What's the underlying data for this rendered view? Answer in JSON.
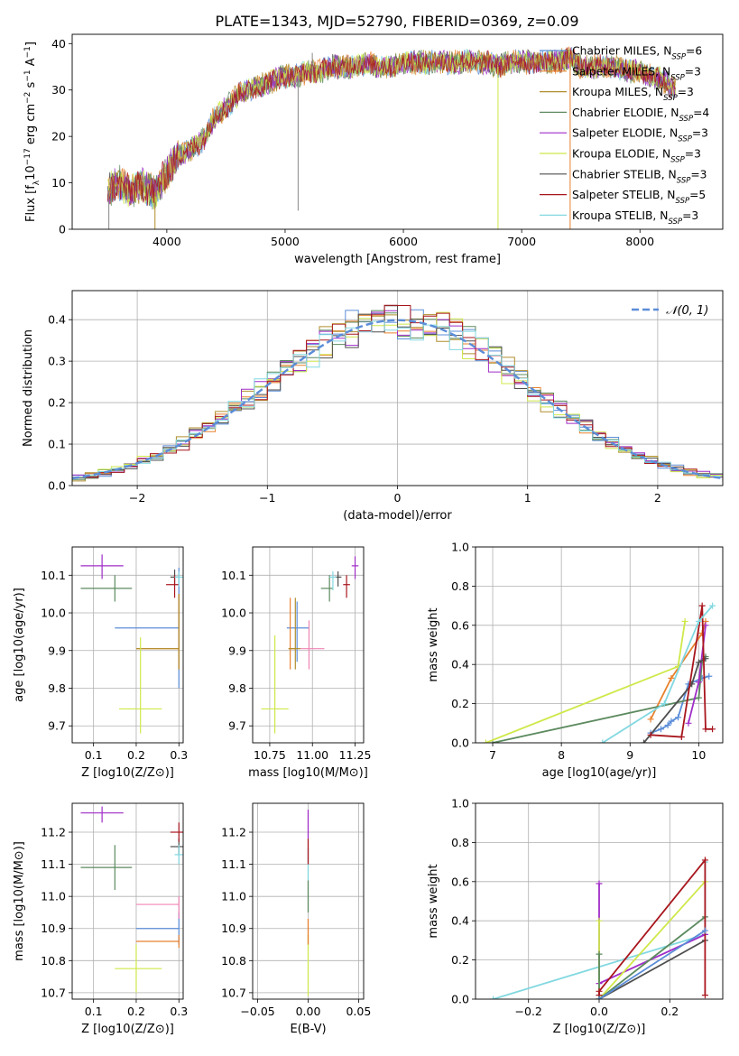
{
  "figure_title": "PLATE=1343, MJD=52790, FIBERID=0369, z=0.09",
  "series": [
    {
      "name": "Chabrier MILES",
      "nssp": "6",
      "color": "#5b8dd8"
    },
    {
      "name": "Salpeter MILES",
      "nssp": "3",
      "color": "#e8812e"
    },
    {
      "name": "Kroupa MILES",
      "nssp": "3",
      "color": "#b08d2d"
    },
    {
      "name": "Chabrier ELODIE",
      "nssp": "4",
      "color": "#5c8a5f"
    },
    {
      "name": "Salpeter ELODIE",
      "nssp": "3",
      "color": "#a02cc8"
    },
    {
      "name": "Kroupa ELODIE",
      "nssp": "3",
      "color": "#cfe84a"
    },
    {
      "name": "Chabrier STELIB",
      "nssp": "3",
      "color": "#4f4f4f"
    },
    {
      "name": "Salpeter STELIB",
      "nssp": "5",
      "color": "#a8161d"
    },
    {
      "name": "Kroupa STELIB",
      "nssp": "3",
      "color": "#82d8e0"
    }
  ],
  "nssp_label": "N",
  "nssp_sub": "SSP",
  "chart_data": [
    {
      "id": "spectrum",
      "type": "line",
      "xlabel": "wavelength [Angstrom, rest frame]",
      "ylabel": "Flux [f_λ 10^-17 erg cm^-2 s^-1 A^-1]",
      "xlim": [
        3200,
        8700
      ],
      "ylim": [
        0,
        42
      ],
      "xticks": [
        4000,
        5000,
        6000,
        7000,
        8000
      ],
      "yticks": [
        0,
        10,
        20,
        30,
        40
      ],
      "grid": false,
      "legend": "top-right",
      "flux_envelope": [
        [
          3500,
          8
        ],
        [
          3600,
          10
        ],
        [
          3700,
          8
        ],
        [
          3800,
          9.5
        ],
        [
          3900,
          8
        ],
        [
          4000,
          12
        ],
        [
          4100,
          16
        ],
        [
          4200,
          17
        ],
        [
          4300,
          19
        ],
        [
          4400,
          24
        ],
        [
          4500,
          26
        ],
        [
          4600,
          29
        ],
        [
          4700,
          30
        ],
        [
          4800,
          31
        ],
        [
          4900,
          32
        ],
        [
          5000,
          33
        ],
        [
          5100,
          33
        ],
        [
          5200,
          34
        ],
        [
          5300,
          34
        ],
        [
          5400,
          35
        ],
        [
          5500,
          35
        ],
        [
          5600,
          35
        ],
        [
          5700,
          36
        ],
        [
          5800,
          35
        ],
        [
          5900,
          35
        ],
        [
          6000,
          36
        ],
        [
          6100,
          36
        ],
        [
          6200,
          36
        ],
        [
          6300,
          36
        ],
        [
          6400,
          36
        ],
        [
          6500,
          36
        ],
        [
          6600,
          36
        ],
        [
          6700,
          36
        ],
        [
          6800,
          35
        ],
        [
          6900,
          36
        ],
        [
          7000,
          36
        ],
        [
          7100,
          36
        ],
        [
          7200,
          36
        ],
        [
          7300,
          36
        ],
        [
          7400,
          37
        ],
        [
          7500,
          35
        ],
        [
          7600,
          35
        ],
        [
          7700,
          35
        ],
        [
          7800,
          35
        ],
        [
          7900,
          34
        ],
        [
          8000,
          34
        ],
        [
          8100,
          33
        ],
        [
          8200,
          32
        ],
        [
          8300,
          30
        ]
      ],
      "spikes": [
        {
          "x": 5110,
          "y": 4
        },
        {
          "x": 5230,
          "y": 38
        },
        {
          "x": 3510,
          "y": 0
        },
        {
          "x": 3900,
          "y": 0
        },
        {
          "x": 6800,
          "y": 0
        },
        {
          "x": 7410,
          "y": 0
        }
      ]
    },
    {
      "id": "residual-hist",
      "type": "line",
      "xlabel": "(data-model)/error",
      "ylabel": "Normed distribution",
      "xlim": [
        -2.5,
        2.5
      ],
      "ylim": [
        0,
        0.47
      ],
      "xticks": [
        -2,
        -1,
        0,
        1,
        2
      ],
      "yticks": [
        0.0,
        0.1,
        0.2,
        0.3,
        0.4
      ],
      "grid": true,
      "legend": "top-right",
      "normal_label": "𝒩(0, 1)",
      "normal_color": "#5b8dd8"
    },
    {
      "id": "age-vs-Z",
      "type": "scatter",
      "xlabel": "Z [log10(Z/Z⊙)]",
      "ylabel": "age  [log10(age/yr)]",
      "xlim": [
        0.05,
        0.31
      ],
      "ylim": [
        9.655,
        10.175
      ],
      "xticks": [
        0.1,
        0.2,
        0.3
      ],
      "yticks": [
        9.7,
        9.8,
        9.9,
        10.0,
        10.1
      ],
      "grid": true,
      "points": [
        {
          "s": 0,
          "x": 0.3,
          "y": 9.96,
          "xerr": [
            0.15,
            0.3
          ],
          "yerr": [
            9.8,
            10.12
          ]
        },
        {
          "s": 1,
          "x": 0.3,
          "y": 9.905,
          "xerr": [
            0.2,
            0.3
          ],
          "yerr": [
            9.85,
            10.05
          ]
        },
        {
          "s": 2,
          "x": 0.3,
          "y": 9.905,
          "xerr": [
            0.2,
            0.3
          ],
          "yerr": [
            9.85,
            10.05
          ]
        },
        {
          "s": 3,
          "x": 0.15,
          "y": 10.065,
          "xerr": [
            0.07,
            0.19
          ],
          "yerr": [
            10.03,
            10.1
          ]
        },
        {
          "s": 4,
          "x": 0.12,
          "y": 10.125,
          "xerr": [
            0.07,
            0.17
          ],
          "yerr": [
            10.09,
            10.155
          ]
        },
        {
          "s": 5,
          "x": 0.21,
          "y": 9.745,
          "xerr": [
            0.16,
            0.26
          ],
          "yerr": [
            9.68,
            9.935
          ]
        },
        {
          "s": 6,
          "x": 0.29,
          "y": 10.095,
          "xerr": [
            0.28,
            0.3
          ],
          "yerr": [
            10.075,
            10.115
          ]
        },
        {
          "s": 7,
          "x": 0.29,
          "y": 10.075,
          "xerr": [
            0.27,
            0.3
          ],
          "yerr": [
            10.04,
            10.1
          ]
        },
        {
          "s": 8,
          "x": 0.3,
          "y": 10.095,
          "xerr": [
            0.29,
            0.31
          ],
          "yerr": [
            10.07,
            10.11
          ]
        }
      ]
    },
    {
      "id": "age-vs-mass",
      "type": "scatter",
      "xlabel": "mass [log10(M/M⊙)]",
      "ylabel": "",
      "xlim": [
        10.65,
        11.3
      ],
      "ylim": [
        9.655,
        10.175
      ],
      "xticks": [
        10.75,
        11.0,
        11.25
      ],
      "yticks": [
        9.7,
        9.8,
        9.9,
        10.0,
        10.1
      ],
      "grid": true,
      "points": [
        {
          "s": 0,
          "x": 10.91,
          "y": 9.96,
          "xerr": [
            10.85,
            10.98
          ],
          "yerr": [
            9.87,
            10.03
          ]
        },
        {
          "s": 1,
          "x": 10.87,
          "y": 9.905,
          "xerr": [
            10.86,
            10.9
          ],
          "yerr": [
            9.85,
            10.04
          ]
        },
        {
          "s": 2,
          "x": 10.9,
          "y": 9.905,
          "xerr": [
            10.86,
            10.93
          ],
          "yerr": [
            9.85,
            10.04
          ]
        },
        {
          "s": 3,
          "x": 11.1,
          "y": 10.065,
          "xerr": [
            11.05,
            11.12
          ],
          "yerr": [
            10.03,
            10.1
          ]
        },
        {
          "s": 4,
          "x": 11.25,
          "y": 10.125,
          "xerr": [
            11.23,
            11.27
          ],
          "yerr": [
            10.09,
            10.15
          ]
        },
        {
          "s": 5,
          "x": 10.78,
          "y": 9.745,
          "xerr": [
            10.7,
            10.86
          ],
          "yerr": [
            9.68,
            9.94
          ]
        },
        {
          "s": 6,
          "x": 11.15,
          "y": 10.095,
          "xerr": [
            11.13,
            11.17
          ],
          "yerr": [
            10.07,
            10.11
          ]
        },
        {
          "s": 7,
          "x": 11.2,
          "y": 10.075,
          "xerr": [
            11.18,
            11.22
          ],
          "yerr": [
            10.04,
            10.1
          ]
        },
        {
          "s": 8,
          "x": 11.12,
          "y": 10.095,
          "xerr": [
            11.1,
            11.14
          ],
          "yerr": [
            10.06,
            10.11
          ]
        },
        {
          "s": 9,
          "x": 10.98,
          "y": 9.905,
          "xerr": [
            10.93,
            11.07
          ],
          "yerr": [
            9.85,
            9.98
          ]
        }
      ],
      "extra_color": "#f084b4"
    },
    {
      "id": "mass-weight-vs-age",
      "type": "line",
      "xlabel": "age  [log10(age/yr)]",
      "ylabel": "mass weight",
      "xlim": [
        6.75,
        10.35
      ],
      "ylim": [
        0,
        1.0
      ],
      "xticks": [
        7,
        8,
        9,
        10
      ],
      "yticks": [
        0.0,
        0.2,
        0.4,
        0.6,
        0.8,
        1.0
      ],
      "grid": true,
      "series_points": [
        {
          "s": 0,
          "pts": [
            [
              9.3,
              0.05
            ],
            [
              9.45,
              0.07
            ],
            [
              9.55,
              0.09
            ],
            [
              9.6,
              0.11
            ],
            [
              9.7,
              0.13
            ],
            [
              9.85,
              0.3
            ],
            [
              10.05,
              0.33
            ],
            [
              10.15,
              0.34
            ]
          ]
        },
        {
          "s": 1,
          "pts": [
            [
              9.3,
              0.12
            ],
            [
              9.6,
              0.33
            ],
            [
              10.05,
              0.56
            ],
            [
              10.1,
              0.62
            ]
          ]
        },
        {
          "s": 3,
          "pts": [
            [
              7.0,
              0.0
            ],
            [
              10.0,
              0.23
            ],
            [
              10.05,
              0.42
            ],
            [
              10.1,
              0.44
            ]
          ]
        },
        {
          "s": 4,
          "pts": [
            [
              9.85,
              0.1
            ],
            [
              10.0,
              0.31
            ],
            [
              10.1,
              0.6
            ]
          ]
        },
        {
          "s": 5,
          "pts": [
            [
              6.9,
              0.0
            ],
            [
              9.7,
              0.39
            ],
            [
              9.8,
              0.62
            ]
          ]
        },
        {
          "s": 6,
          "pts": [
            [
              9.2,
              0.0
            ],
            [
              9.9,
              0.3
            ],
            [
              10.0,
              0.41
            ],
            [
              10.1,
              0.43
            ]
          ]
        },
        {
          "s": 7,
          "pts": [
            [
              9.3,
              0.04
            ],
            [
              9.75,
              0.03
            ],
            [
              10.05,
              0.7
            ],
            [
              10.1,
              0.07
            ],
            [
              10.2,
              0.07
            ]
          ]
        },
        {
          "s": 8,
          "pts": [
            [
              8.6,
              0.0
            ],
            [
              9.5,
              0.2
            ],
            [
              10.0,
              0.62
            ],
            [
              10.2,
              0.7
            ]
          ]
        }
      ]
    },
    {
      "id": "mass-vs-Z",
      "type": "scatter",
      "xlabel": "Z [log10(Z/Z⊙)]",
      "ylabel": "mass [log10(M/M⊙)]",
      "xlim": [
        0.05,
        0.31
      ],
      "ylim": [
        10.68,
        11.29
      ],
      "xticks": [
        0.1,
        0.2,
        0.3
      ],
      "yticks": [
        10.7,
        10.8,
        10.9,
        11.0,
        11.1,
        11.2
      ],
      "grid": true,
      "points": [
        {
          "s": 0,
          "x": 0.3,
          "y": 10.9,
          "xerr": [
            0.2,
            0.3
          ],
          "yerr": [
            10.85,
            10.95
          ]
        },
        {
          "s": 1,
          "x": 0.3,
          "y": 10.86,
          "xerr": [
            0.2,
            0.3
          ],
          "yerr": [
            10.84,
            10.88
          ]
        },
        {
          "s": 3,
          "x": 0.15,
          "y": 11.09,
          "xerr": [
            0.07,
            0.19
          ],
          "yerr": [
            11.02,
            11.16
          ]
        },
        {
          "s": 4,
          "x": 0.12,
          "y": 11.26,
          "xerr": [
            0.07,
            0.17
          ],
          "yerr": [
            11.23,
            11.28
          ]
        },
        {
          "s": 5,
          "x": 0.2,
          "y": 10.775,
          "xerr": [
            0.15,
            0.26
          ],
          "yerr": [
            10.7,
            10.85
          ]
        },
        {
          "s": 6,
          "x": 0.3,
          "y": 11.155,
          "xerr": [
            0.28,
            0.31
          ],
          "yerr": [
            11.13,
            11.18
          ]
        },
        {
          "s": 7,
          "x": 0.3,
          "y": 11.2,
          "xerr": [
            0.28,
            0.31
          ],
          "yerr": [
            11.17,
            11.23
          ]
        },
        {
          "s": 8,
          "x": 0.3,
          "y": 11.13,
          "xerr": [
            0.29,
            0.31
          ],
          "yerr": [
            11.1,
            11.16
          ]
        },
        {
          "s": 9,
          "x": 0.3,
          "y": 10.975,
          "xerr": [
            0.2,
            0.3
          ],
          "yerr": [
            10.93,
            11.0
          ]
        }
      ],
      "extra_color": "#f084b4"
    },
    {
      "id": "mass-vs-ebv",
      "type": "scatter",
      "xlabel": "E(B-V)",
      "ylabel": "",
      "xlim": [
        -0.055,
        0.055
      ],
      "ylim": [
        10.68,
        11.29
      ],
      "xticks": [
        -0.05,
        0.0,
        0.05
      ],
      "yticks": [
        10.7,
        10.8,
        10.9,
        11.0,
        11.1,
        11.2
      ],
      "grid": true,
      "segments": [
        {
          "s": 5,
          "y0": 10.69,
          "y1": 10.88
        },
        {
          "s": 1,
          "y0": 10.85,
          "y1": 10.93
        },
        {
          "s": 3,
          "y0": 10.95,
          "y1": 11.05
        },
        {
          "s": 8,
          "y0": 11.05,
          "y1": 11.15
        },
        {
          "s": 7,
          "y0": 11.1,
          "y1": 11.18
        },
        {
          "s": 4,
          "y0": 11.18,
          "y1": 11.27
        }
      ]
    },
    {
      "id": "mass-weight-vs-Z",
      "type": "line",
      "xlabel": "Z [log10(Z/Z⊙)]",
      "ylabel": "mass weight",
      "xlim": [
        -0.35,
        0.35
      ],
      "ylim": [
        0,
        1.0
      ],
      "xticks": [
        -0.2,
        0.0,
        0.2
      ],
      "yticks": [
        0.0,
        0.2,
        0.4,
        0.6,
        0.8,
        1.0
      ],
      "grid": true,
      "series_points": [
        {
          "s": 8,
          "pts": [
            [
              -0.3,
              0.0
            ],
            [
              0.3,
              0.33
            ],
            [
              0.3,
              0.7
            ]
          ]
        },
        {
          "s": 4,
          "pts": [
            [
              0.0,
              0.59
            ],
            [
              0.0,
              0.08
            ],
            [
              0.3,
              0.33
            ]
          ]
        },
        {
          "s": 5,
          "pts": [
            [
              0.0,
              0.4
            ],
            [
              0.0,
              0.0
            ],
            [
              0.3,
              0.6
            ]
          ]
        },
        {
          "s": 3,
          "pts": [
            [
              0.0,
              0.23
            ],
            [
              0.0,
              0.0
            ],
            [
              0.3,
              0.42
            ]
          ]
        },
        {
          "s": 6,
          "pts": [
            [
              0.0,
              0.0
            ],
            [
              0.3,
              0.3
            ]
          ]
        },
        {
          "s": 7,
          "pts": [
            [
              0.0,
              0.02
            ],
            [
              0.0,
              0.04
            ],
            [
              0.3,
              0.71
            ],
            [
              0.3,
              0.02
            ]
          ]
        },
        {
          "s": 0,
          "pts": [
            [
              0.0,
              0.0
            ],
            [
              0.3,
              0.35
            ]
          ]
        }
      ],
      "vertical_ticks_at": [
        0.0,
        0.3
      ]
    }
  ]
}
